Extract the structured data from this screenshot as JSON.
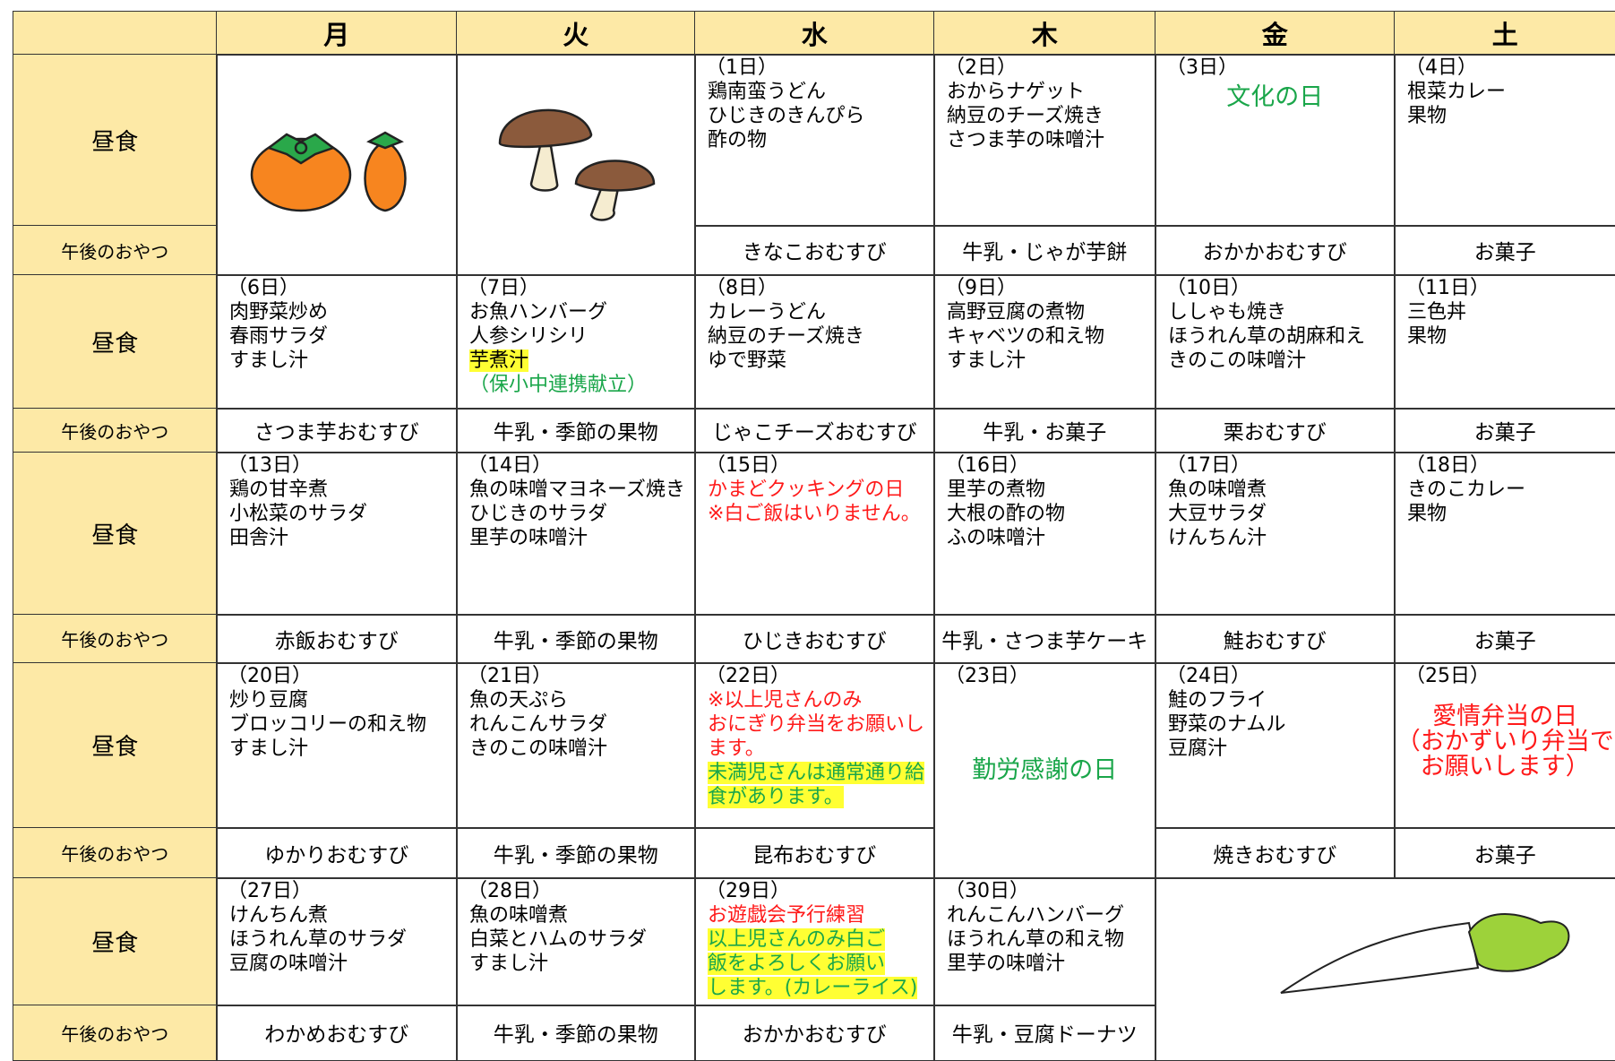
{
  "header": {
    "days": [
      "月",
      "火",
      "水",
      "木",
      "金",
      "土"
    ]
  },
  "row_labels": {
    "lunch": "昼食",
    "snack": "午後のおやつ"
  },
  "weeks": [
    {
      "days": [
        null,
        null,
        {
          "date": "（1日）",
          "lines": [
            "鶏南蛮うどん",
            "ひじきのきんぴら",
            "酢の物"
          ],
          "snack": "きなこおむすび"
        },
        {
          "date": "（2日）",
          "lines": [
            "おからナゲット",
            "納豆のチーズ焼き",
            "さつま芋の味噌汁"
          ],
          "snack": "牛乳・じゃが芋餅"
        },
        {
          "date": "（3日）",
          "note": [
            {
              "text": "文化の日",
              "color": "#1aa64a"
            }
          ],
          "snack": "おかかおむすび"
        },
        {
          "date": "（4日）",
          "lines": [
            "根菜カレー",
            "果物"
          ],
          "snack": "お菓子"
        }
      ]
    },
    {
      "days": [
        {
          "date": "（6日）",
          "lines": [
            "肉野菜炒め",
            "春雨サラダ",
            "すまし汁"
          ],
          "snack": "さつま芋おむすび"
        },
        {
          "date": "（7日）",
          "lines": [
            "お魚ハンバーグ",
            "人参シリシリ",
            {
              "text": "芋煮汁",
              "highlight": "#ffff33"
            },
            {
              "text": "（保小中連携献立）",
              "color": "#1aa64a"
            }
          ],
          "snack": "牛乳・季節の果物"
        },
        {
          "date": "（8日）",
          "lines": [
            "カレーうどん",
            "納豆のチーズ焼き",
            "ゆで野菜"
          ],
          "snack": "じゃこチーズおむすび"
        },
        {
          "date": "（9日）",
          "lines": [
            "高野豆腐の煮物",
            "キャベツの和え物",
            "すまし汁"
          ],
          "snack": "牛乳・お菓子"
        },
        {
          "date": "（10日）",
          "lines": [
            "ししゃも焼き",
            "ほうれん草の胡麻和え",
            "きのこの味噌汁"
          ],
          "snack": "栗おむすび"
        },
        {
          "date": "（11日）",
          "lines": [
            "三色丼",
            "果物"
          ],
          "snack": "お菓子"
        }
      ]
    },
    {
      "days": [
        {
          "date": "（13日）",
          "lines": [
            "鶏の甘辛煮",
            "小松菜のサラダ",
            "田舎汁"
          ],
          "snack": "赤飯おむすび"
        },
        {
          "date": "（14日）",
          "lines": [
            "魚の味噌マヨネーズ焼き",
            "ひじきのサラダ",
            "里芋の味噌汁"
          ],
          "snack": "牛乳・季節の果物"
        },
        {
          "date": "（15日）",
          "lines": [
            {
              "text": "かまどクッキングの日",
              "color": "#ff1a1a"
            },
            {
              "text": "※白ご飯はいりません。",
              "color": "#ff1a1a"
            }
          ],
          "snack": "ひじきおむすび"
        },
        {
          "date": "（16日）",
          "lines": [
            "里芋の煮物",
            "大根の酢の物",
            "ふの味噌汁"
          ],
          "snack": "牛乳・さつま芋ケーキ"
        },
        {
          "date": "（17日）",
          "lines": [
            "魚の味噌煮",
            "大豆サラダ",
            "けんちん汁"
          ],
          "snack": "鮭おむすび"
        },
        {
          "date": "（18日）",
          "lines": [
            "きのこカレー",
            "果物"
          ],
          "snack": "お菓子"
        }
      ]
    },
    {
      "days": [
        {
          "date": "（20日）",
          "lines": [
            "炒り豆腐",
            "ブロッコリーの和え物",
            "すまし汁"
          ],
          "snack": "ゆかりおむすび"
        },
        {
          "date": "（21日）",
          "lines": [
            "魚の天ぷら",
            "れんこんサラダ",
            "きのこの味噌汁"
          ],
          "snack": "牛乳・季節の果物"
        },
        {
          "date": "（22日）",
          "lines": [
            {
              "text": "※以上児さんのみ",
              "color": "#ff1a1a"
            },
            {
              "text": "おにぎり弁当をお願いし",
              "color": "#ff1a1a"
            },
            {
              "text": "ます。",
              "color": "#ff1a1a"
            },
            {
              "text": "未満児さんは通常通り給",
              "color": "#1aa64a",
              "highlight": "#ffff33"
            },
            {
              "text": "食があります。",
              "color": "#1aa64a",
              "highlight": "#ffff33"
            }
          ],
          "snack": "昆布おむすび"
        },
        {
          "date": "（23日）",
          "note": [
            {
              "text": "勤労感謝の日",
              "color": "#1aa64a"
            }
          ]
        },
        {
          "date": "（24日）",
          "lines": [
            "鮭のフライ",
            "野菜のナムル",
            "豆腐汁"
          ],
          "snack": "焼きおむすび"
        },
        {
          "date": "（25日）",
          "note": [
            {
              "text": "愛情弁当の日",
              "color": "#ff1a1a"
            },
            {
              "text": "（おかずいり弁当で",
              "color": "#ff1a1a"
            },
            {
              "text": "お願いします）",
              "color": "#ff1a1a"
            }
          ],
          "snack": "お菓子"
        }
      ]
    },
    {
      "days": [
        {
          "date": "（27日）",
          "lines": [
            "けんちん煮",
            "ほうれん草のサラダ",
            "豆腐の味噌汁"
          ],
          "snack": "わかめおむすび"
        },
        {
          "date": "（28日）",
          "lines": [
            "魚の味噌煮",
            "白菜とハムのサラダ",
            "すまし汁"
          ],
          "snack": "牛乳・季節の果物"
        },
        {
          "date": "（29日）",
          "lines": [
            {
              "text": "お遊戯会予行練習",
              "color": "#ff1a1a"
            },
            {
              "text": "以上児さんのみ白ご",
              "color": "#1aa64a",
              "highlight": "#ffff33"
            },
            {
              "text": "飯をよろしくお願い",
              "color": "#1aa64a",
              "highlight": "#ffff33"
            },
            {
              "text": "します。(カレーライス)",
              "color": "#1aa64a",
              "highlight": "#ffff33"
            }
          ],
          "snack": "おかかおむすび"
        },
        {
          "date": "（30日）",
          "lines": [
            "れんこんハンバーグ",
            "ほうれん草の和え物",
            "里芋の味噌汁"
          ],
          "snack": "牛乳・豆腐ドーナツ"
        },
        null,
        null
      ]
    }
  ]
}
